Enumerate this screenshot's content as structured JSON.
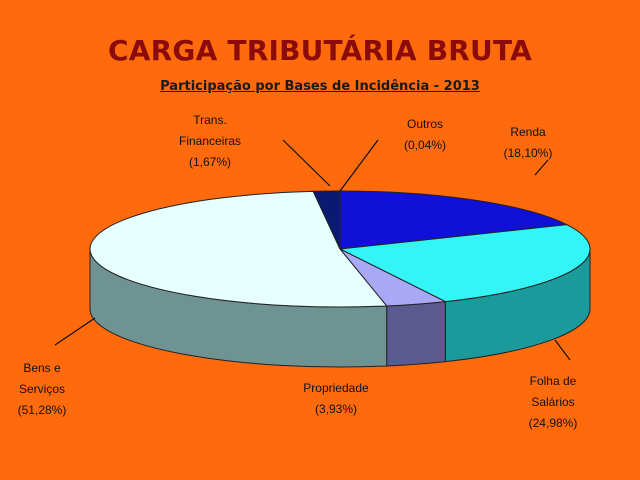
{
  "chart_data": {
    "type": "pie",
    "title": "CARGA TRIBUTÁRIA BRUTA",
    "subtitle": "Participação por Bases de Incidência - 2013",
    "slices": [
      {
        "name_lines": [
          "Renda"
        ],
        "value": 18.1,
        "value_label": "(18,10%)",
        "color": "#1010d8",
        "side": "#0a0a80"
      },
      {
        "name_lines": [
          "Folha de",
          "Salários"
        ],
        "value": 24.98,
        "value_label": "(24,98%)",
        "color": "#33f5f5",
        "side": "#1a9a9a"
      },
      {
        "name_lines": [
          "Propriedade"
        ],
        "value": 3.93,
        "value_label": "(3,93%)",
        "color": "#a8a8f5",
        "side": "#5a5a90"
      },
      {
        "name_lines": [
          "Bens e",
          "Serviços"
        ],
        "value": 51.28,
        "value_label": "(51,28%)",
        "color": "#e6ffff",
        "side": "#6f9292"
      },
      {
        "name_lines": [
          "Trans.",
          "Financeiras"
        ],
        "value": 1.67,
        "value_label": "(1,67%)",
        "color": "#0a1a70",
        "side": "#050b40"
      },
      {
        "name_lines": [
          "Outros"
        ],
        "value": 0.04,
        "value_label": "(0,04%)",
        "color": "#202060",
        "side": "#101030"
      }
    ]
  }
}
